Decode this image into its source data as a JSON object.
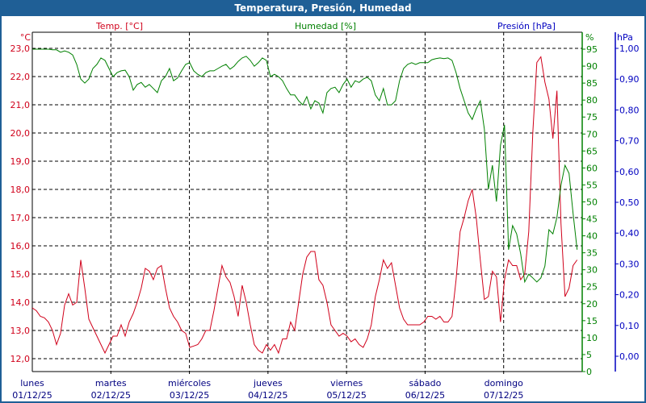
{
  "window": {
    "title": "Temperatura, Presión, Humedad"
  },
  "chart_data": {
    "type": "line",
    "title": "Temperatura, Presión, Humedad",
    "interval_hours": 1.233,
    "x_range_days": [
      0,
      7
    ],
    "x_labels": [
      {
        "day": "lunes",
        "date": "01/12/25"
      },
      {
        "day": "martes",
        "date": "02/12/25"
      },
      {
        "day": "miércoles",
        "date": "03/12/25"
      },
      {
        "day": "jueves",
        "date": "04/12/25"
      },
      {
        "day": "viernes",
        "date": "05/12/25"
      },
      {
        "day": "sábado",
        "date": "06/12/25"
      },
      {
        "day": "domingo",
        "date": "07/12/25"
      }
    ],
    "axes": {
      "temp": {
        "label": "Temp. [°C]",
        "unit": "°C",
        "color": "#d0001a",
        "range": [
          12.0,
          23.0
        ],
        "ticks": [
          "12,0",
          "13,0",
          "14,0",
          "15,0",
          "16,0",
          "17,0",
          "18,0",
          "19,0",
          "20,0",
          "21,0",
          "22,0",
          "23,0"
        ]
      },
      "humidity": {
        "label": "Humedad [%]",
        "unit": "%",
        "color": "#008000",
        "range": [
          0,
          95
        ],
        "ticks": [
          "0",
          "5",
          "10",
          "15",
          "20",
          "25",
          "30",
          "35",
          "40",
          "45",
          "50",
          "55",
          "60",
          "65",
          "70",
          "75",
          "80",
          "85",
          "90",
          "95"
        ]
      },
      "pressure": {
        "label": "Presión [hPa]",
        "unit": "hPa",
        "color": "#0000c0",
        "range": [
          0.0,
          1.0
        ],
        "ticks": [
          "0,00",
          "0,10",
          "0,20",
          "0,30",
          "0,40",
          "0,50",
          "0,60",
          "0,70",
          "0,80",
          "0,90",
          "1,00"
        ]
      }
    },
    "grid": true,
    "series": [
      {
        "name": "Temperatura",
        "axis": "temp",
        "color": "#d0001a",
        "values": [
          13.8,
          13.7,
          13.5,
          13.45,
          13.3,
          13.0,
          12.5,
          12.9,
          13.9,
          14.3,
          13.9,
          14.0,
          15.5,
          14.5,
          13.4,
          13.1,
          12.8,
          12.5,
          12.2,
          12.5,
          12.8,
          12.8,
          13.2,
          12.8,
          13.3,
          13.6,
          14.0,
          14.5,
          15.2,
          15.1,
          14.8,
          15.2,
          15.3,
          14.5,
          13.8,
          13.5,
          13.3,
          13.0,
          12.9,
          12.4,
          12.45,
          12.5,
          12.7,
          13.0,
          13.0,
          13.7,
          14.5,
          15.3,
          14.9,
          14.7,
          14.2,
          13.5,
          14.6,
          14.0,
          13.2,
          12.5,
          12.3,
          12.2,
          12.5,
          12.3,
          12.5,
          12.2,
          12.7,
          12.7,
          13.3,
          13.0,
          14.0,
          15.0,
          15.6,
          15.8,
          15.8,
          14.8,
          14.6,
          14.0,
          13.2,
          13.0,
          12.8,
          12.9,
          12.8,
          12.6,
          12.7,
          12.5,
          12.4,
          12.7,
          13.2,
          14.2,
          14.8,
          15.5,
          15.2,
          15.4,
          14.6,
          13.8,
          13.4,
          13.2,
          13.2,
          13.2,
          13.2,
          13.3,
          13.5,
          13.5,
          13.4,
          13.5,
          13.3,
          13.3,
          13.5,
          14.8,
          16.5,
          17.0,
          17.6,
          18.0,
          17.0,
          15.5,
          14.1,
          14.2,
          15.1,
          14.9,
          13.3,
          14.8,
          15.5,
          15.3,
          15.3,
          14.8,
          15.0,
          16.5,
          20.0,
          22.5,
          22.7,
          21.8,
          21.2,
          19.8,
          21.5,
          16.8,
          14.2,
          14.5,
          15.3,
          15.5
        ]
      },
      {
        "name": "Humedad",
        "axis": "humidity",
        "color": "#008000",
        "values": [
          95.0,
          95.0,
          95.0,
          95.0,
          95.0,
          94.8,
          94.8,
          94.1,
          94.5,
          94.1,
          93.3,
          90.5,
          86.2,
          85.0,
          86.2,
          89.3,
          90.5,
          92.4,
          91.7,
          89.3,
          86.9,
          88.1,
          88.6,
          88.8,
          86.9,
          82.9,
          84.6,
          85.2,
          83.8,
          84.6,
          83.4,
          82.2,
          85.7,
          86.9,
          89.3,
          85.7,
          86.5,
          88.6,
          90.5,
          91.0,
          88.6,
          87.6,
          86.9,
          88.1,
          88.6,
          88.6,
          89.3,
          90.0,
          90.5,
          89.1,
          90.0,
          91.4,
          92.4,
          92.9,
          91.7,
          90.0,
          91.0,
          92.4,
          91.7,
          86.9,
          87.6,
          86.9,
          85.7,
          83.4,
          81.5,
          81.5,
          79.8,
          78.6,
          81.0,
          77.4,
          79.8,
          79.1,
          76.2,
          82.2,
          83.4,
          83.8,
          82.2,
          84.6,
          86.2,
          83.8,
          85.7,
          85.2,
          86.2,
          86.7,
          85.7,
          81.5,
          79.8,
          83.4,
          78.6,
          78.6,
          79.8,
          85.7,
          89.3,
          90.5,
          91.0,
          90.5,
          91.0,
          91.0,
          91.0,
          91.9,
          92.2,
          92.4,
          92.2,
          92.4,
          91.7,
          88.1,
          83.4,
          79.8,
          76.2,
          74.3,
          77.4,
          79.8,
          71.5,
          53.7,
          60.8,
          50.1,
          66.7,
          72.7,
          35.9,
          43.0,
          40.6,
          34.7,
          26.4,
          28.7,
          27.6,
          26.4,
          27.6,
          31.1,
          41.8,
          40.6,
          45.4,
          54.9,
          60.8,
          58.4,
          46.6,
          35.9
        ]
      },
      {
        "name": "Presión",
        "axis": "pressure",
        "color": "#0000c0",
        "values": []
      }
    ]
  }
}
